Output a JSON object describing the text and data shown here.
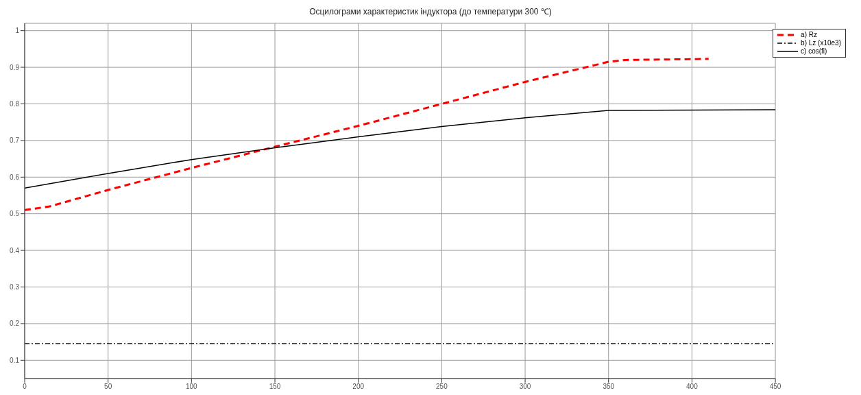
{
  "chart_data": {
    "type": "line",
    "title": "Осцилограми характеристик індуктора (до температури 300 ℃)",
    "xlim": [
      0,
      450
    ],
    "xticks": [
      0,
      50,
      100,
      150,
      200,
      250,
      300,
      350,
      400,
      450
    ],
    "ylim": [
      0.05,
      1.02
    ],
    "yticks": [
      0.1,
      0.2,
      0.3,
      0.4,
      0.5,
      0.6,
      0.7,
      0.8,
      0.9,
      1
    ],
    "grid": true,
    "legend": "top right",
    "marker": "none",
    "series": [
      {
        "name": "a) Rz",
        "color": "#ff0000",
        "line_style": "dashed",
        "x": [
          0,
          15,
          50,
          100,
          150,
          200,
          250,
          300,
          350,
          360,
          400,
          410
        ],
        "values": [
          0.51,
          0.52,
          0.565,
          0.625,
          0.683,
          0.74,
          0.8,
          0.86,
          0.915,
          0.92,
          0.922,
          0.923
        ]
      },
      {
        "name": "b) Lz (x10e3)",
        "color": "#000000",
        "line_style": "dotted",
        "x": [
          0,
          450
        ],
        "values": [
          0.145,
          0.145
        ]
      },
      {
        "name": "c) cos(fi)",
        "color": "#000000",
        "line_style": "solid",
        "x": [
          0,
          50,
          100,
          150,
          200,
          250,
          300,
          350,
          450
        ],
        "values": [
          0.57,
          0.61,
          0.648,
          0.68,
          0.71,
          0.738,
          0.762,
          0.782,
          0.784
        ]
      }
    ]
  }
}
